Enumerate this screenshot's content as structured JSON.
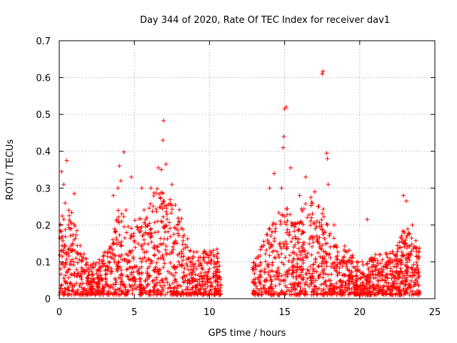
{
  "chart_data": {
    "type": "scatter",
    "title": "Day 344 of 2020, Rate Of TEC Index for receiver dav1",
    "xlabel": "GPS time / hours",
    "ylabel": "ROTI / TECUs",
    "xlim": [
      0,
      25
    ],
    "ylim": [
      0,
      0.7
    ],
    "xticks": [
      0,
      5,
      10,
      15,
      20,
      25
    ],
    "yticks": [
      0,
      0.1,
      0.2,
      0.3,
      0.4,
      0.5,
      0.6,
      0.7
    ],
    "grid": true,
    "marker": "+",
    "color": "#ff0000",
    "envelope": [
      [
        0.0,
        0.17
      ],
      [
        0.25,
        0.3
      ],
      [
        0.5,
        0.26
      ],
      [
        1.0,
        0.22
      ],
      [
        1.5,
        0.13
      ],
      [
        2.0,
        0.1
      ],
      [
        2.5,
        0.1
      ],
      [
        3.0,
        0.13
      ],
      [
        3.5,
        0.17
      ],
      [
        4.0,
        0.26
      ],
      [
        4.5,
        0.24
      ],
      [
        5.0,
        0.22
      ],
      [
        5.5,
        0.25
      ],
      [
        6.0,
        0.27
      ],
      [
        6.5,
        0.3
      ],
      [
        7.0,
        0.3
      ],
      [
        7.5,
        0.27
      ],
      [
        8.0,
        0.26
      ],
      [
        8.5,
        0.17
      ],
      [
        9.0,
        0.13
      ],
      [
        9.5,
        0.13
      ],
      [
        10.0,
        0.14
      ],
      [
        10.5,
        0.14
      ],
      [
        10.7,
        0.1
      ],
      [
        12.9,
        0.1
      ],
      [
        13.5,
        0.15
      ],
      [
        14.0,
        0.2
      ],
      [
        14.5,
        0.23
      ],
      [
        15.0,
        0.26
      ],
      [
        15.5,
        0.22
      ],
      [
        16.0,
        0.24
      ],
      [
        16.5,
        0.3
      ],
      [
        17.0,
        0.27
      ],
      [
        17.5,
        0.25
      ],
      [
        18.0,
        0.2
      ],
      [
        18.5,
        0.14
      ],
      [
        19.0,
        0.15
      ],
      [
        19.5,
        0.12
      ],
      [
        20.0,
        0.1
      ],
      [
        20.5,
        0.11
      ],
      [
        21.0,
        0.12
      ],
      [
        21.5,
        0.12
      ],
      [
        22.0,
        0.13
      ],
      [
        22.5,
        0.15
      ],
      [
        23.0,
        0.2
      ],
      [
        23.5,
        0.18
      ],
      [
        24.0,
        0.15
      ]
    ],
    "peaks": [
      [
        0.15,
        0.345
      ],
      [
        0.3,
        0.31
      ],
      [
        0.5,
        0.375
      ],
      [
        1.0,
        0.285
      ],
      [
        3.6,
        0.28
      ],
      [
        3.9,
        0.3
      ],
      [
        4.0,
        0.36
      ],
      [
        4.1,
        0.32
      ],
      [
        4.3,
        0.398
      ],
      [
        4.8,
        0.33
      ],
      [
        5.5,
        0.3
      ],
      [
        6.1,
        0.3
      ],
      [
        6.6,
        0.355
      ],
      [
        6.8,
        0.35
      ],
      [
        6.9,
        0.43
      ],
      [
        6.95,
        0.483
      ],
      [
        7.1,
        0.365
      ],
      [
        7.5,
        0.31
      ],
      [
        14.0,
        0.3
      ],
      [
        14.3,
        0.34
      ],
      [
        14.8,
        0.3
      ],
      [
        14.9,
        0.41
      ],
      [
        14.95,
        0.44
      ],
      [
        15.0,
        0.515
      ],
      [
        15.1,
        0.52
      ],
      [
        15.4,
        0.355
      ],
      [
        16.0,
        0.28
      ],
      [
        16.4,
        0.33
      ],
      [
        17.0,
        0.29
      ],
      [
        17.5,
        0.61
      ],
      [
        17.55,
        0.617
      ],
      [
        17.8,
        0.395
      ],
      [
        17.85,
        0.38
      ],
      [
        17.9,
        0.31
      ],
      [
        18.3,
        0.2
      ],
      [
        20.5,
        0.215
      ],
      [
        22.9,
        0.28
      ],
      [
        23.1,
        0.265
      ],
      [
        23.5,
        0.2
      ]
    ]
  }
}
